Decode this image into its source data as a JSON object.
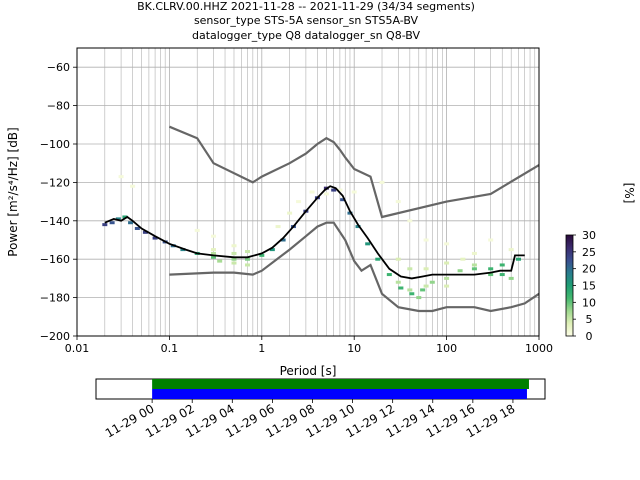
{
  "figure": {
    "title_lines": [
      "BK.CLRV.00.HHZ   2021-11-28 -- 2021-11-29  (34/34 segments)",
      "sensor_type STS-5A sensor_sn STS5A-BV",
      "datalogger_type Q8 datalogger_sn Q8-BV"
    ]
  },
  "chart_data": [
    {
      "type": "heatmap",
      "subtype": "probabilistic power spectral density",
      "xlabel": "Period [s]",
      "ylabel": "Power [m²/s⁴/Hz] [dB]",
      "x_scale": "log",
      "xlim": [
        0.01,
        1000
      ],
      "ylim": [
        -200,
        -50
      ],
      "x_ticks": [
        0.01,
        0.1,
        1,
        10,
        100,
        1000
      ],
      "x_tick_labels": [
        "0.01",
        "0.1",
        "1",
        "10",
        "100",
        "1000"
      ],
      "y_ticks": [
        -200,
        -180,
        -160,
        -140,
        -120,
        -100,
        -80,
        -60
      ],
      "y_tick_labels": [
        "−200",
        "−180",
        "−160",
        "−140",
        "−120",
        "−100",
        "−80",
        "−60"
      ],
      "grid": true,
      "colorbar": {
        "label": "[%]",
        "range": [
          0,
          30
        ],
        "ticks": [
          0,
          5,
          10,
          15,
          20,
          25,
          30
        ],
        "tick_labels": [
          "0",
          "5",
          "10",
          "15",
          "20",
          "25",
          "30"
        ],
        "colormap_stops": [
          "#fdfde6",
          "#dff0b8",
          "#9ed88f",
          "#44b86f",
          "#1f9e74",
          "#2a7c8e",
          "#3a4e8f",
          "#3b2b6e",
          "#2a0a3a"
        ]
      },
      "mode_curve": {
        "x": [
          0.02,
          0.025,
          0.03,
          0.035,
          0.04,
          0.05,
          0.07,
          0.1,
          0.15,
          0.2,
          0.3,
          0.5,
          0.7,
          1,
          1.3,
          1.7,
          2.2,
          3,
          4,
          4.8,
          5.5,
          6.3,
          7.5,
          9,
          11,
          14,
          18,
          24,
          32,
          42,
          55,
          70,
          100,
          140,
          200,
          300,
          380,
          500,
          550,
          700
        ],
        "y": [
          -141,
          -139,
          -140,
          -138,
          -140,
          -144,
          -148,
          -152,
          -155,
          -157,
          -158,
          -159,
          -159,
          -157,
          -154,
          -149,
          -143,
          -135,
          -128,
          -124,
          -122,
          -123,
          -127,
          -135,
          -142,
          -149,
          -157,
          -165,
          -169,
          -170,
          -169,
          -168,
          -168,
          -168,
          -168,
          -167,
          -166,
          -166,
          -158,
          -158
        ]
      },
      "noise_models": [
        {
          "x": [
            0.1,
            0.2,
            0.3,
            0.8,
            1,
            2,
            3,
            4,
            5,
            6,
            7,
            8,
            10,
            15,
            20,
            100,
            300,
            1000
          ],
          "y": [
            -91,
            -97,
            -110,
            -120,
            -117,
            -110,
            -105,
            -100,
            -97,
            -99,
            -103,
            -107,
            -113,
            -117,
            -138,
            -130,
            -126,
            -111
          ]
        },
        {
          "x": [
            0.1,
            0.3,
            0.5,
            0.8,
            1,
            2,
            3,
            4,
            5,
            6,
            8,
            10,
            12,
            15,
            20,
            30,
            50,
            70,
            100,
            200,
            300,
            500,
            700,
            1000
          ],
          "y": [
            -168,
            -167,
            -167,
            -168,
            -166,
            -155,
            -148,
            -143,
            -141,
            -141,
            -150,
            -161,
            -166,
            -163,
            -178,
            -185,
            -187,
            -187,
            -185,
            -185,
            -187,
            -185,
            -183,
            -178
          ]
        }
      ],
      "histogram_bins": [
        {
          "x": 0.02,
          "y": -142,
          "v": 24
        },
        {
          "x": 0.024,
          "y": -141,
          "v": 22
        },
        {
          "x": 0.028,
          "y": -139,
          "v": 18
        },
        {
          "x": 0.033,
          "y": -138,
          "v": 14
        },
        {
          "x": 0.038,
          "y": -141,
          "v": 20
        },
        {
          "x": 0.045,
          "y": -144,
          "v": 22
        },
        {
          "x": 0.055,
          "y": -146,
          "v": 24
        },
        {
          "x": 0.07,
          "y": -149,
          "v": 24
        },
        {
          "x": 0.09,
          "y": -151,
          "v": 22
        },
        {
          "x": 0.11,
          "y": -153,
          "v": 20
        },
        {
          "x": 0.14,
          "y": -155,
          "v": 18
        },
        {
          "x": 0.2,
          "y": -157,
          "v": 14
        },
        {
          "x": 0.3,
          "y": -159,
          "v": 10
        },
        {
          "x": 0.5,
          "y": -160,
          "v": 8
        },
        {
          "x": 0.7,
          "y": -160,
          "v": 9
        },
        {
          "x": 1,
          "y": -158,
          "v": 12
        },
        {
          "x": 1.3,
          "y": -155,
          "v": 16
        },
        {
          "x": 1.7,
          "y": -150,
          "v": 20
        },
        {
          "x": 2.2,
          "y": -143,
          "v": 22
        },
        {
          "x": 3,
          "y": -135,
          "v": 24
        },
        {
          "x": 4,
          "y": -128,
          "v": 24
        },
        {
          "x": 5,
          "y": -123,
          "v": 26
        },
        {
          "x": 6,
          "y": -124,
          "v": 24
        },
        {
          "x": 7.5,
          "y": -129,
          "v": 22
        },
        {
          "x": 9,
          "y": -136,
          "v": 20
        },
        {
          "x": 11,
          "y": -143,
          "v": 18
        },
        {
          "x": 14,
          "y": -152,
          "v": 16
        },
        {
          "x": 18,
          "y": -160,
          "v": 14
        },
        {
          "x": 24,
          "y": -168,
          "v": 12
        },
        {
          "x": 32,
          "y": -175,
          "v": 12
        },
        {
          "x": 42,
          "y": -178,
          "v": 12
        },
        {
          "x": 55,
          "y": -176,
          "v": 10
        },
        {
          "x": 70,
          "y": -172,
          "v": 8
        },
        {
          "x": 100,
          "y": -170,
          "v": 6
        },
        {
          "x": 140,
          "y": -166,
          "v": 8
        },
        {
          "x": 200,
          "y": -165,
          "v": 10
        },
        {
          "x": 300,
          "y": -165,
          "v": 12
        },
        {
          "x": 400,
          "y": -163,
          "v": 12
        },
        {
          "x": 600,
          "y": -160,
          "v": 14
        },
        {
          "x": 0.3,
          "y": -157,
          "v": 6
        },
        {
          "x": 0.5,
          "y": -157,
          "v": 5
        },
        {
          "x": 0.7,
          "y": -156,
          "v": 5
        },
        {
          "x": 0.3,
          "y": -155,
          "v": 3
        },
        {
          "x": 0.5,
          "y": -153,
          "v": 2
        },
        {
          "x": 0.5,
          "y": -162,
          "v": 5
        },
        {
          "x": 0.7,
          "y": -163,
          "v": 5
        },
        {
          "x": 0.35,
          "y": -161,
          "v": 7
        },
        {
          "x": 1.5,
          "y": -143,
          "v": 2
        },
        {
          "x": 2,
          "y": -136,
          "v": 2
        },
        {
          "x": 2.5,
          "y": -130,
          "v": 1
        },
        {
          "x": 3.5,
          "y": -125,
          "v": 1
        },
        {
          "x": 5,
          "y": -126,
          "v": 1
        },
        {
          "x": 7,
          "y": -124,
          "v": 1
        },
        {
          "x": 10,
          "y": -125,
          "v": 1
        },
        {
          "x": 0.03,
          "y": -117,
          "v": 1
        },
        {
          "x": 0.04,
          "y": -122,
          "v": 1
        },
        {
          "x": 0.2,
          "y": -145,
          "v": 1
        },
        {
          "x": 0.3,
          "y": -148,
          "v": 1
        },
        {
          "x": 20,
          "y": -120,
          "v": 1
        },
        {
          "x": 30,
          "y": -130,
          "v": 1
        },
        {
          "x": 40,
          "y": -140,
          "v": 1
        },
        {
          "x": 60,
          "y": -150,
          "v": 1
        },
        {
          "x": 100,
          "y": -152,
          "v": 1
        },
        {
          "x": 300,
          "y": -150,
          "v": 1
        },
        {
          "x": 30,
          "y": -160,
          "v": 4
        },
        {
          "x": 40,
          "y": -165,
          "v": 5
        },
        {
          "x": 30,
          "y": -172,
          "v": 6
        },
        {
          "x": 40,
          "y": -176,
          "v": 6
        },
        {
          "x": 60,
          "y": -165,
          "v": 4
        },
        {
          "x": 100,
          "y": -162,
          "v": 4
        },
        {
          "x": 150,
          "y": -160,
          "v": 3
        },
        {
          "x": 200,
          "y": -163,
          "v": 6
        },
        {
          "x": 300,
          "y": -168,
          "v": 10
        },
        {
          "x": 400,
          "y": -168,
          "v": 12
        },
        {
          "x": 500,
          "y": -170,
          "v": 8
        },
        {
          "x": 100,
          "y": -174,
          "v": 4
        },
        {
          "x": 60,
          "y": -174,
          "v": 5
        },
        {
          "x": 50,
          "y": -180,
          "v": 8
        },
        {
          "x": 200,
          "y": -157,
          "v": 2
        },
        {
          "x": 500,
          "y": -155,
          "v": 2
        }
      ]
    },
    {
      "type": "timeline",
      "subtype": "data coverage",
      "x_ticks": [
        "11-29 00",
        "11-29 02",
        "11-29 04",
        "11-29 06",
        "11-29 08",
        "11-29 10",
        "11-29 12",
        "11-29 14",
        "11-29 16",
        "11-29 18"
      ],
      "x_tick_hours": [
        0,
        2,
        4,
        6,
        8,
        10,
        12,
        14,
        16,
        18
      ],
      "xlim_hours": [
        -2.8,
        19.6
      ],
      "bars": [
        {
          "color": "#008000",
          "start_hour": 0,
          "end_hour": 18.8
        },
        {
          "color": "#0000ff",
          "start_hour": 0,
          "end_hour": 18.7
        }
      ]
    }
  ]
}
